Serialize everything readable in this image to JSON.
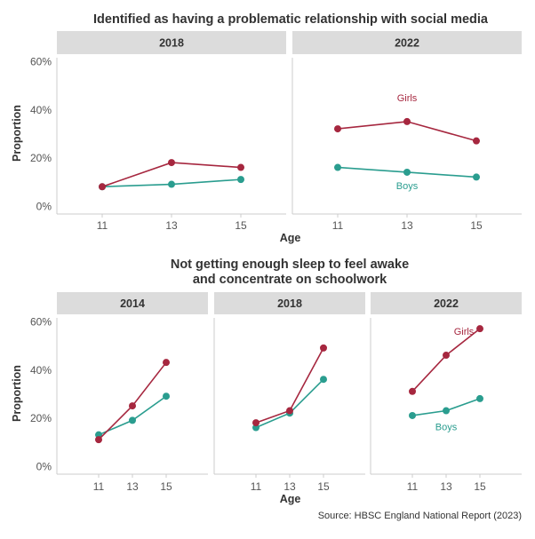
{
  "colors": {
    "girls": "#a6273f",
    "boys": "#2a9d8f",
    "strip": "#dcdcdc",
    "text": "#333333",
    "axis": "#cccccc"
  },
  "top_title": "Identified as having a problematic relationship with social media",
  "bottom_title_lines": [
    "Not getting enough sleep to feel awake",
    "and concentrate on schoolwork"
  ],
  "source": "Source: HBSC England National Report (2023)",
  "y_tick_labels": [
    "0%",
    "20%",
    "40%",
    "60%"
  ],
  "chart_data": [
    {
      "type": "line",
      "title": "Identified as having a problematic relationship with social media",
      "xlabel": "Age",
      "ylabel": "Proportion",
      "x": [
        11,
        13,
        15
      ],
      "ylim": [
        0,
        0.6
      ],
      "y_ticks": [
        0,
        0.2,
        0.4,
        0.6
      ],
      "grid": false,
      "panels": [
        {
          "strip": "2018",
          "series": [
            {
              "key": "girls",
              "values": [
                0.08,
                0.18,
                0.16
              ]
            },
            {
              "key": "boys",
              "values": [
                0.08,
                0.09,
                0.11
              ]
            }
          ]
        },
        {
          "strip": "2022",
          "series": [
            {
              "name": "Girls",
              "key": "girls",
              "values": [
                0.32,
                0.35,
                0.27
              ]
            },
            {
              "name": "Boys",
              "key": "boys",
              "values": [
                0.16,
                0.14,
                0.12
              ]
            }
          ]
        }
      ]
    },
    {
      "type": "line",
      "title": "Not getting enough sleep to feel awake and concentrate on schoolwork",
      "xlabel": "Age",
      "ylabel": "Proportion",
      "x": [
        11,
        13,
        15
      ],
      "ylim": [
        0,
        0.6
      ],
      "y_ticks": [
        0,
        0.2,
        0.4,
        0.6
      ],
      "grid": false,
      "panels": [
        {
          "strip": "2014",
          "series": [
            {
              "key": "girls",
              "values": [
                0.11,
                0.25,
                0.43
              ]
            },
            {
              "key": "boys",
              "values": [
                0.13,
                0.19,
                0.29
              ]
            }
          ]
        },
        {
          "strip": "2018",
          "series": [
            {
              "key": "girls",
              "values": [
                0.18,
                0.23,
                0.49
              ]
            },
            {
              "key": "boys",
              "values": [
                0.16,
                0.22,
                0.36
              ]
            }
          ]
        },
        {
          "strip": "2022",
          "series": [
            {
              "name": "Girls",
              "key": "girls",
              "values": [
                0.31,
                0.46,
                0.57
              ]
            },
            {
              "name": "Boys",
              "key": "boys",
              "values": [
                0.21,
                0.23,
                0.28
              ]
            }
          ]
        }
      ]
    }
  ]
}
